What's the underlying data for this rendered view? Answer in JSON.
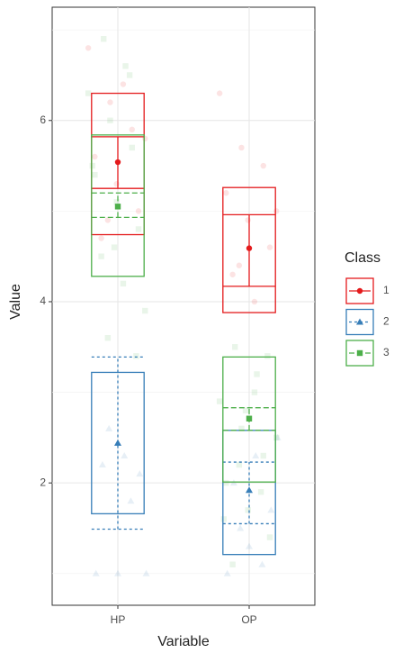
{
  "chart_data": {
    "type": "crossbar",
    "categories": [
      "HP",
      "OP"
    ],
    "x_label": "Variable",
    "y_label": "Value",
    "ylim": [
      0.65,
      7.25
    ],
    "yticks": [
      2,
      4,
      6
    ],
    "minor_yticks": [
      1,
      3,
      5,
      7
    ],
    "grid": true,
    "legend_title": "Class",
    "legend_position": "right",
    "series": [
      {
        "name": "1",
        "color": "#e41a1c",
        "linetype": "solid",
        "shape": "circle",
        "values": [
          5.54,
          4.59
        ],
        "box_low": [
          4.74,
          3.88
        ],
        "box_high": [
          6.3,
          5.26
        ],
        "ci_low": [
          5.25,
          4.17
        ],
        "ci_high": [
          5.82,
          4.96
        ],
        "points": [
          [
            6.8,
            6.2,
            5.9,
            5.6,
            5.3,
            5.0,
            4.7,
            6.4,
            5.8,
            4.9
          ],
          [
            6.3,
            5.7,
            5.5,
            5.2,
            4.9,
            4.6,
            4.3,
            4.0,
            5.0,
            4.4
          ]
        ]
      },
      {
        "name": "2",
        "color": "#377eb8",
        "linetype": "dotted",
        "shape": "triangle",
        "values": [
          2.44,
          1.92
        ],
        "box_low": [
          1.66,
          1.21
        ],
        "box_high": [
          3.22,
          2.58
        ],
        "ci_low": [
          1.49,
          1.55
        ],
        "ci_high": [
          3.39,
          2.23
        ],
        "points": [
          [
            1.0,
            1.0,
            2.1,
            2.2,
            2.3,
            1.0,
            2.6,
            1.8
          ],
          [
            1.0,
            1.3,
            1.7,
            2.0,
            2.3,
            2.5,
            1.5,
            1.1
          ]
        ]
      },
      {
        "name": "3",
        "color": "#4daf4a",
        "linetype": "dashed",
        "shape": "square",
        "values": [
          5.05,
          2.71
        ],
        "box_low": [
          4.28,
          2.01
        ],
        "box_high": [
          5.84,
          3.39
        ],
        "ci_low": [
          4.93,
          2.58
        ],
        "ci_high": [
          5.2,
          2.83
        ],
        "points": [
          [
            6.9,
            6.6,
            6.3,
            6.0,
            5.7,
            5.4,
            5.1,
            4.8,
            4.5,
            4.2,
            3.9,
            3.6,
            6.5,
            5.5,
            4.6,
            3.4
          ],
          [
            3.5,
            3.2,
            2.9,
            2.6,
            2.3,
            2.0,
            1.7,
            1.4,
            1.1,
            3.0,
            2.5,
            2.2,
            1.9,
            1.6,
            2.8,
            3.4
          ]
        ]
      }
    ]
  }
}
